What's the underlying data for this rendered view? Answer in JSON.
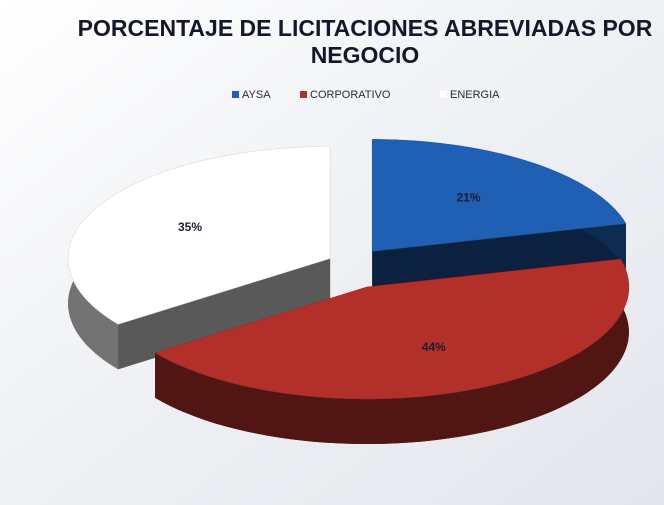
{
  "chart_data": {
    "type": "pie3d",
    "title": "PORCENTAJE DE LICITACIONES ABREVIADAS POR",
    "title_line2": "NEGOCIO",
    "categories": [
      "AYSA",
      "CORPORATIVO",
      "ENERGIA"
    ],
    "values": [
      21,
      44,
      35
    ],
    "value_labels": [
      "21%",
      "44%",
      "35%"
    ],
    "colors": [
      "#1f5fb4",
      "#b3302a",
      "#ffffff"
    ],
    "legend": "top"
  }
}
